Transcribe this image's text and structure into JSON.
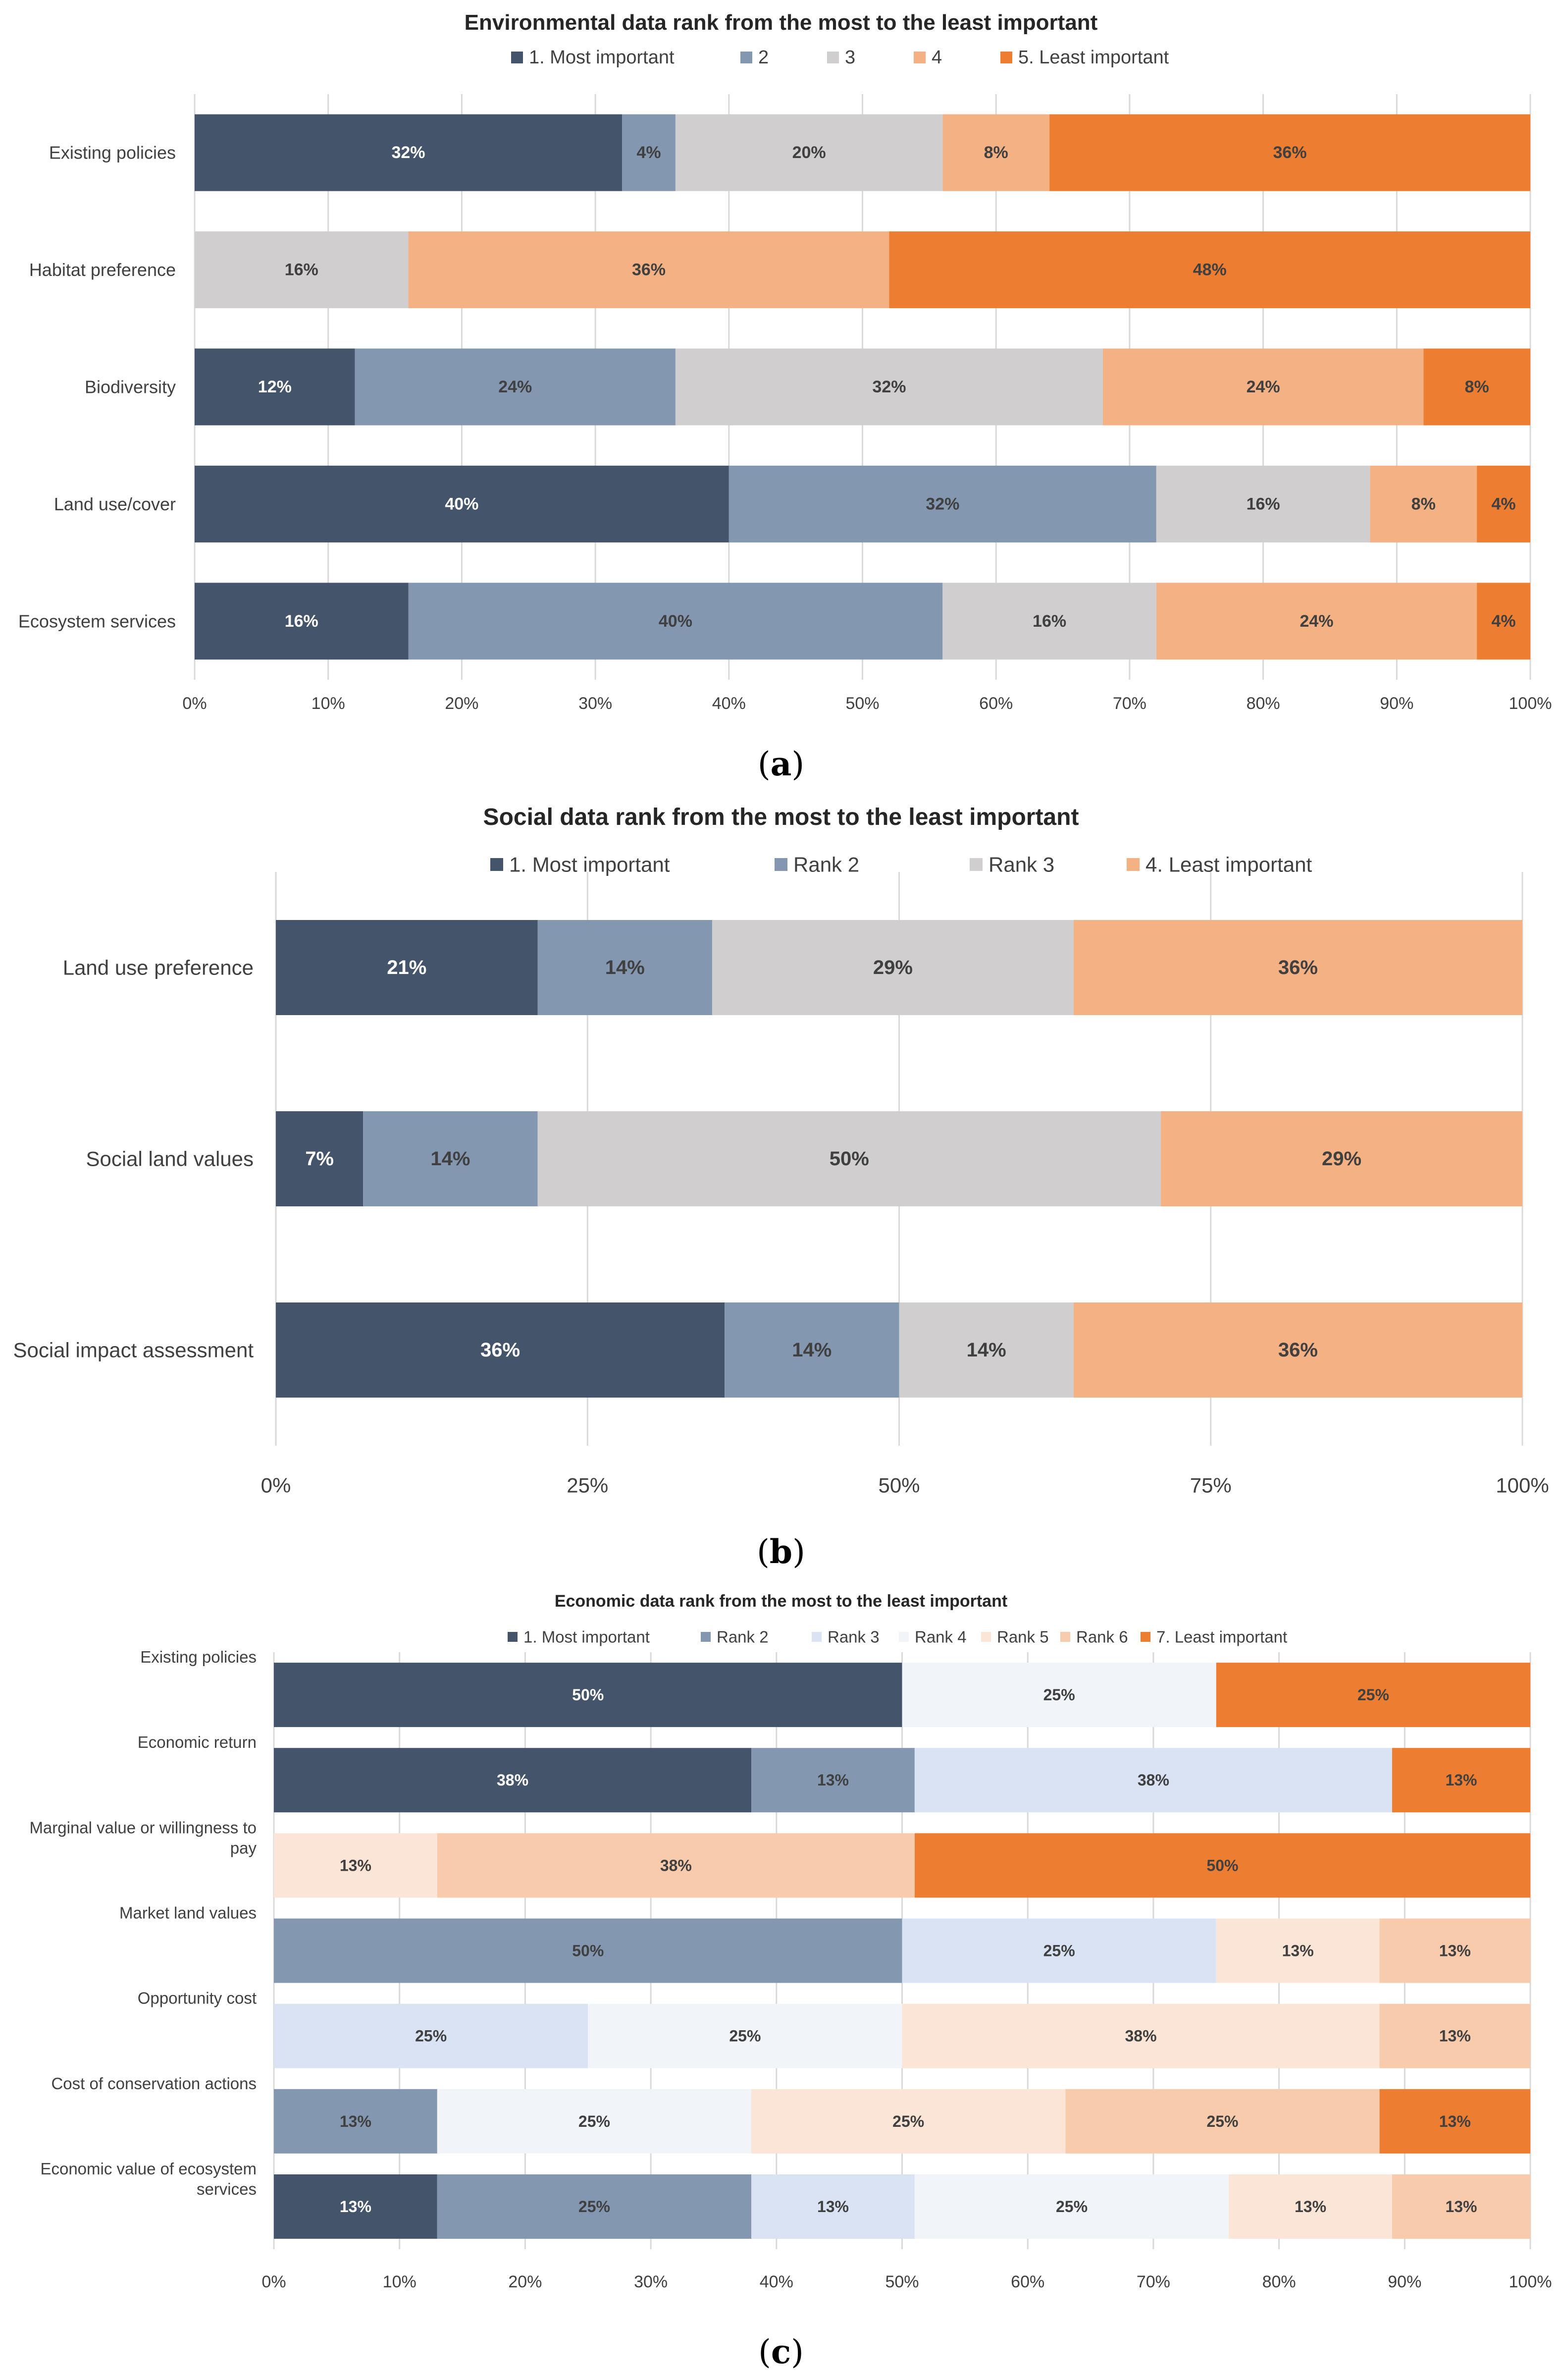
{
  "chart_data": [
    {
      "type": "bar",
      "stacked": true,
      "orientation": "horizontal",
      "title": "Environmental data rank from the most to the least important",
      "panel": "(a)",
      "categories": [
        "Existing policies",
        "Habitat preference",
        "Biodiversity",
        "Land use/cover",
        "Ecosystem services"
      ],
      "series": [
        {
          "name": "1. Most important",
          "color": "#44546a",
          "values": [
            32,
            0,
            12,
            40,
            16
          ],
          "label_color": "#ffffff"
        },
        {
          "name": "2",
          "color": "#8497b0",
          "values": [
            4,
            0,
            24,
            32,
            40
          ],
          "label_color": "#404040"
        },
        {
          "name": "3",
          "color": "#d0cece",
          "values": [
            20,
            16,
            32,
            16,
            16
          ],
          "label_color": "#404040"
        },
        {
          "name": "4",
          "color": "#f4b183",
          "values": [
            8,
            36,
            24,
            8,
            24
          ],
          "label_color": "#404040"
        },
        {
          "name": "5. Least important",
          "color": "#ed7d31",
          "values": [
            36,
            48,
            8,
            4,
            4
          ],
          "label_color": "#404040"
        }
      ],
      "xlim": [
        0,
        100
      ],
      "ticks": [
        "0%",
        "10%",
        "20%",
        "30%",
        "40%",
        "50%",
        "60%",
        "70%",
        "80%",
        "90%",
        "100%"
      ],
      "grid": true,
      "legend": "top"
    },
    {
      "type": "bar",
      "stacked": true,
      "orientation": "horizontal",
      "title": "Social data rank from the most to the least important",
      "panel": "(b)",
      "categories": [
        "Land use preference",
        "Social land values",
        "Social impact assessment"
      ],
      "series": [
        {
          "name": "1. Most important",
          "color": "#44546a",
          "values": [
            21,
            7,
            36
          ],
          "label_color": "#ffffff"
        },
        {
          "name": "Rank 2",
          "color": "#8497b0",
          "values": [
            14,
            14,
            14
          ],
          "label_color": "#404040"
        },
        {
          "name": "Rank 3",
          "color": "#d0cece",
          "values": [
            29,
            50,
            14
          ],
          "label_color": "#404040"
        },
        {
          "name": "4. Least important",
          "color": "#f4b183",
          "values": [
            36,
            29,
            36
          ],
          "label_color": "#404040"
        }
      ],
      "xlim": [
        0,
        100
      ],
      "ticks": [
        "0%",
        "25%",
        "50%",
        "75%",
        "100%"
      ],
      "grid": true,
      "legend": "top"
    },
    {
      "type": "bar",
      "stacked": true,
      "orientation": "horizontal",
      "title": "Economic data rank from the most to the least important",
      "panel": "(c)",
      "categories": [
        "Existing policies",
        "Economic return",
        "Marginal value or willingness to pay",
        "Market land values",
        "Opportunity cost",
        "Cost of conservation actions",
        "Economic value of ecosystem services"
      ],
      "series": [
        {
          "name": "1. Most important",
          "color": "#44546a",
          "values": [
            50,
            38,
            0,
            0,
            0,
            0,
            13
          ],
          "label_color": "#ffffff"
        },
        {
          "name": "Rank 2",
          "color": "#8497b0",
          "values": [
            0,
            13,
            0,
            50,
            0,
            13,
            25
          ],
          "label_color": "#404040"
        },
        {
          "name": "Rank 3",
          "color": "#dae3f3",
          "values": [
            0,
            38,
            0,
            25,
            25,
            0,
            13
          ],
          "label_color": "#404040"
        },
        {
          "name": "Rank 4",
          "color": "#f1f4f9",
          "values": [
            25,
            0,
            0,
            0,
            25,
            25,
            25
          ],
          "label_color": "#404040"
        },
        {
          "name": "Rank 5",
          "color": "#fbe5d6",
          "values": [
            0,
            0,
            13,
            13,
            38,
            25,
            13
          ],
          "label_color": "#404040"
        },
        {
          "name": "Rank 6",
          "color": "#f8cbad",
          "values": [
            0,
            0,
            38,
            13,
            13,
            25,
            13
          ],
          "label_color": "#404040"
        },
        {
          "name": "7. Least important",
          "color": "#ed7d31",
          "values": [
            25,
            13,
            50,
            0,
            0,
            13,
            0
          ],
          "label_color": "#404040"
        }
      ],
      "xlim": [
        0,
        100
      ],
      "ticks": [
        "0%",
        "10%",
        "20%",
        "30%",
        "40%",
        "50%",
        "60%",
        "70%",
        "80%",
        "90%",
        "100%"
      ],
      "grid": true,
      "legend": "top"
    }
  ]
}
